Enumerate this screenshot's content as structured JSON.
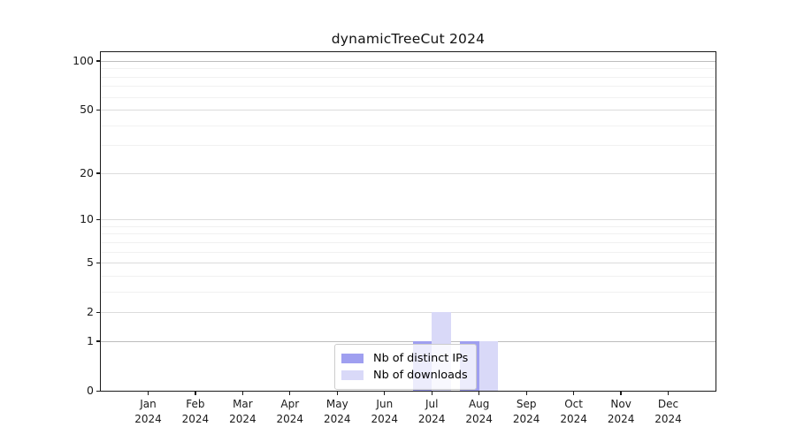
{
  "chart_data": {
    "type": "bar",
    "title": "dynamicTreeCut 2024",
    "categories": [
      {
        "month": "Jan",
        "year": "2024"
      },
      {
        "month": "Feb",
        "year": "2024"
      },
      {
        "month": "Mar",
        "year": "2024"
      },
      {
        "month": "Apr",
        "year": "2024"
      },
      {
        "month": "May",
        "year": "2024"
      },
      {
        "month": "Jun",
        "year": "2024"
      },
      {
        "month": "Jul",
        "year": "2024"
      },
      {
        "month": "Aug",
        "year": "2024"
      },
      {
        "month": "Sep",
        "year": "2024"
      },
      {
        "month": "Oct",
        "year": "2024"
      },
      {
        "month": "Nov",
        "year": "2024"
      },
      {
        "month": "Dec",
        "year": "2024"
      }
    ],
    "series": [
      {
        "name": "Nb of distinct IPs",
        "color": "#9f9ff0",
        "values": [
          0,
          0,
          0,
          0,
          0,
          0,
          1,
          1,
          0,
          0,
          0,
          0
        ]
      },
      {
        "name": "Nb of downloads",
        "color": "#d9d9f8",
        "values": [
          0,
          0,
          0,
          0,
          0,
          0,
          2,
          1,
          0,
          0,
          0,
          0
        ]
      }
    ],
    "y_axis": {
      "scale": "log1p",
      "ticks": [
        0,
        1,
        2,
        5,
        10,
        20,
        50,
        100
      ],
      "tick_labels": [
        "0",
        "1",
        "2",
        "5",
        "10",
        "20",
        "50",
        "100"
      ],
      "minor_gridlines": [
        3,
        4,
        6,
        7,
        8,
        9,
        30,
        40,
        60,
        70,
        80,
        90
      ],
      "strong_gridlines": [
        1,
        100
      ],
      "max": 113
    },
    "legend": {
      "position": "lower center",
      "entries": [
        "Nb of distinct IPs",
        "Nb of downloads"
      ]
    },
    "grid": true
  }
}
